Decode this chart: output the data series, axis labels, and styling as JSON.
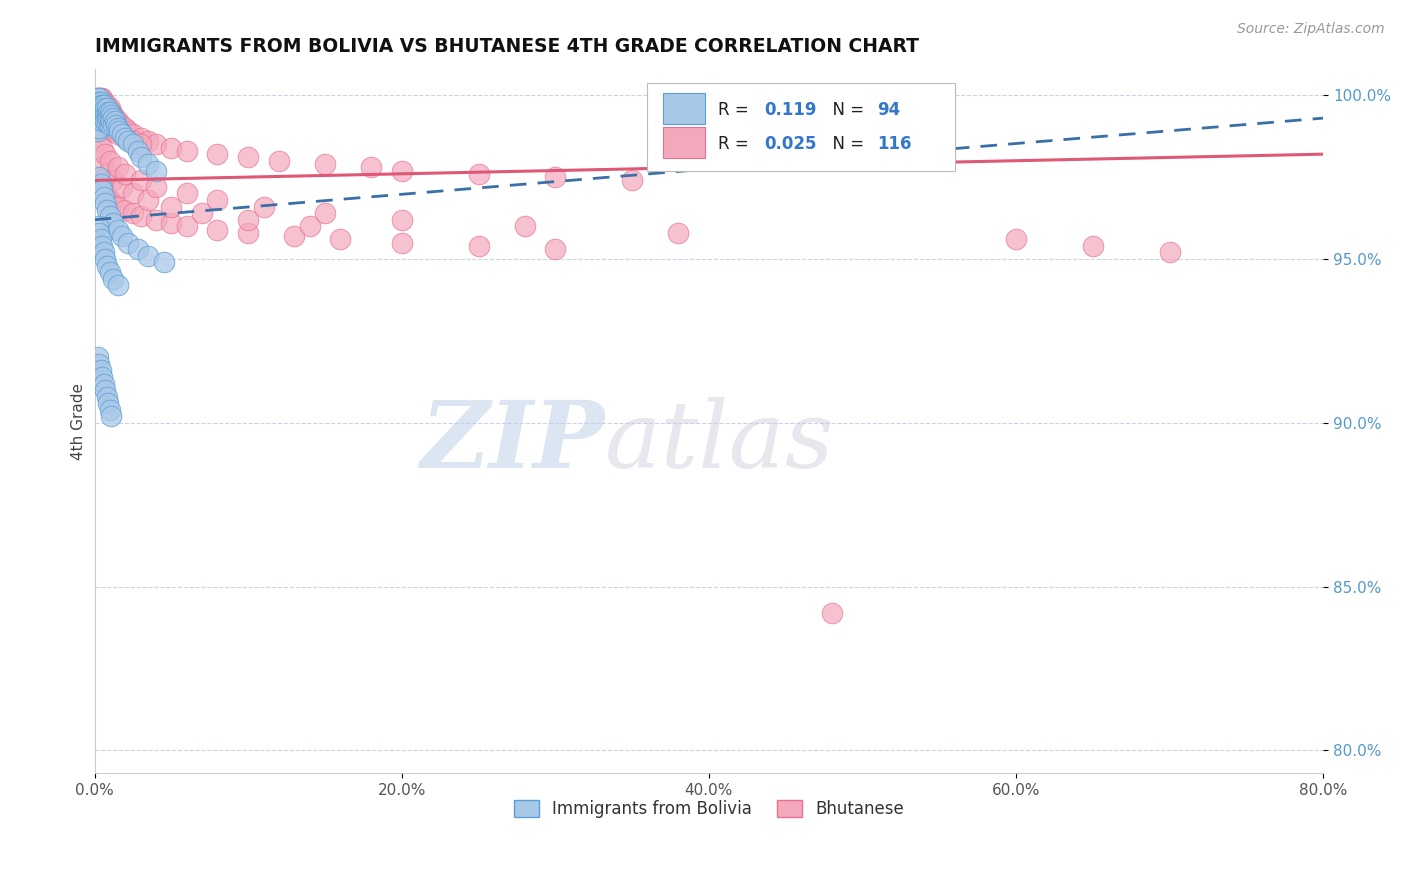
{
  "title": "IMMIGRANTS FROM BOLIVIA VS BHUTANESE 4TH GRADE CORRELATION CHART",
  "source": "Source: ZipAtlas.com",
  "ylabel": "4th Grade",
  "legend_label1": "Immigrants from Bolivia",
  "legend_label2": "Bhutanese",
  "R1": "0.119",
  "N1": "94",
  "R2": "0.025",
  "N2": "116",
  "color1": "#a8c8e8",
  "color1_edge": "#5a9fd4",
  "color1_line": "#3a6fa8",
  "color2": "#f4a8bc",
  "color2_edge": "#e87090",
  "color2_line": "#e05878",
  "xlim": [
    0.0,
    0.8
  ],
  "ylim": [
    0.793,
    1.008
  ],
  "xticks": [
    0.0,
    0.2,
    0.4,
    0.6,
    0.8
  ],
  "xtick_labels": [
    "0.0%",
    "20.0%",
    "40.0%",
    "60.0%",
    "80.0%"
  ],
  "yticks": [
    0.8,
    0.85,
    0.9,
    0.95,
    1.0
  ],
  "ytick_labels": [
    "80.0%",
    "85.0%",
    "90.0%",
    "95.0%",
    "100.0%"
  ],
  "watermark_zip": "ZIP",
  "watermark_atlas": "atlas",
  "background": "#ffffff",
  "grid_color": "#c8d4e8",
  "trendline1_x0": 0.0,
  "trendline1_y0": 0.962,
  "trendline1_x1": 0.8,
  "trendline1_y1": 0.993,
  "trendline2_x0": 0.0,
  "trendline2_y0": 0.974,
  "trendline2_x1": 0.8,
  "trendline2_y1": 0.982,
  "scatter1_x": [
    0.001,
    0.001,
    0.001,
    0.001,
    0.001,
    0.001,
    0.001,
    0.001,
    0.001,
    0.002,
    0.002,
    0.002,
    0.002,
    0.002,
    0.002,
    0.002,
    0.003,
    0.003,
    0.003,
    0.003,
    0.003,
    0.003,
    0.004,
    0.004,
    0.004,
    0.004,
    0.005,
    0.005,
    0.005,
    0.005,
    0.006,
    0.006,
    0.006,
    0.007,
    0.007,
    0.007,
    0.008,
    0.008,
    0.008,
    0.009,
    0.009,
    0.01,
    0.01,
    0.01,
    0.011,
    0.011,
    0.012,
    0.012,
    0.013,
    0.014,
    0.015,
    0.016,
    0.018,
    0.02,
    0.022,
    0.025,
    0.028,
    0.03,
    0.035,
    0.04,
    0.003,
    0.004,
    0.005,
    0.006,
    0.007,
    0.008,
    0.01,
    0.012,
    0.015,
    0.018,
    0.022,
    0.028,
    0.035,
    0.045,
    0.002,
    0.003,
    0.004,
    0.005,
    0.006,
    0.007,
    0.008,
    0.01,
    0.012,
    0.015,
    0.002,
    0.003,
    0.004,
    0.005,
    0.006,
    0.007,
    0.008,
    0.009,
    0.01,
    0.011
  ],
  "scatter1_y": [
    0.998,
    0.997,
    0.996,
    0.995,
    0.994,
    0.993,
    0.992,
    0.991,
    0.99,
    0.999,
    0.997,
    0.996,
    0.995,
    0.993,
    0.991,
    0.989,
    0.999,
    0.998,
    0.996,
    0.994,
    0.992,
    0.99,
    0.998,
    0.997,
    0.995,
    0.993,
    0.997,
    0.996,
    0.994,
    0.992,
    0.997,
    0.995,
    0.993,
    0.996,
    0.994,
    0.992,
    0.996,
    0.994,
    0.992,
    0.995,
    0.993,
    0.995,
    0.993,
    0.991,
    0.994,
    0.992,
    0.993,
    0.991,
    0.992,
    0.991,
    0.99,
    0.989,
    0.988,
    0.987,
    0.986,
    0.985,
    0.983,
    0.981,
    0.979,
    0.977,
    0.975,
    0.973,
    0.971,
    0.969,
    0.967,
    0.965,
    0.963,
    0.961,
    0.959,
    0.957,
    0.955,
    0.953,
    0.951,
    0.949,
    0.96,
    0.958,
    0.956,
    0.954,
    0.952,
    0.95,
    0.948,
    0.946,
    0.944,
    0.942,
    0.92,
    0.918,
    0.916,
    0.914,
    0.912,
    0.91,
    0.908,
    0.906,
    0.904,
    0.902
  ],
  "scatter2_x": [
    0.001,
    0.001,
    0.001,
    0.001,
    0.001,
    0.002,
    0.002,
    0.002,
    0.002,
    0.002,
    0.003,
    0.003,
    0.003,
    0.003,
    0.004,
    0.004,
    0.004,
    0.004,
    0.005,
    0.005,
    0.005,
    0.006,
    0.006,
    0.007,
    0.007,
    0.008,
    0.008,
    0.009,
    0.01,
    0.01,
    0.011,
    0.012,
    0.013,
    0.015,
    0.017,
    0.02,
    0.022,
    0.025,
    0.03,
    0.035,
    0.04,
    0.05,
    0.06,
    0.08,
    0.1,
    0.12,
    0.15,
    0.18,
    0.2,
    0.25,
    0.3,
    0.35,
    0.003,
    0.004,
    0.005,
    0.006,
    0.007,
    0.008,
    0.01,
    0.012,
    0.015,
    0.02,
    0.025,
    0.03,
    0.04,
    0.05,
    0.06,
    0.08,
    0.1,
    0.13,
    0.16,
    0.2,
    0.25,
    0.3,
    0.005,
    0.008,
    0.012,
    0.018,
    0.025,
    0.035,
    0.05,
    0.07,
    0.1,
    0.14,
    0.003,
    0.005,
    0.007,
    0.01,
    0.015,
    0.02,
    0.03,
    0.04,
    0.06,
    0.08,
    0.11,
    0.15,
    0.2,
    0.28,
    0.38,
    0.6,
    0.65,
    0.7,
    0.002,
    0.003,
    0.004,
    0.005,
    0.006,
    0.007,
    0.008,
    0.01,
    0.012,
    0.015,
    0.02,
    0.025,
    0.03,
    0.48
  ],
  "scatter2_y": [
    0.999,
    0.998,
    0.997,
    0.996,
    0.995,
    0.999,
    0.998,
    0.997,
    0.996,
    0.994,
    0.999,
    0.998,
    0.996,
    0.994,
    0.999,
    0.997,
    0.995,
    0.993,
    0.999,
    0.997,
    0.995,
    0.998,
    0.996,
    0.997,
    0.995,
    0.997,
    0.995,
    0.996,
    0.996,
    0.994,
    0.995,
    0.994,
    0.993,
    0.992,
    0.991,
    0.99,
    0.989,
    0.988,
    0.987,
    0.986,
    0.985,
    0.984,
    0.983,
    0.982,
    0.981,
    0.98,
    0.979,
    0.978,
    0.977,
    0.976,
    0.975,
    0.974,
    0.974,
    0.973,
    0.972,
    0.971,
    0.97,
    0.969,
    0.968,
    0.967,
    0.966,
    0.965,
    0.964,
    0.963,
    0.962,
    0.961,
    0.96,
    0.959,
    0.958,
    0.957,
    0.956,
    0.955,
    0.954,
    0.953,
    0.978,
    0.976,
    0.974,
    0.972,
    0.97,
    0.968,
    0.966,
    0.964,
    0.962,
    0.96,
    0.986,
    0.984,
    0.982,
    0.98,
    0.978,
    0.976,
    0.974,
    0.972,
    0.97,
    0.968,
    0.966,
    0.964,
    0.962,
    0.96,
    0.958,
    0.956,
    0.954,
    0.952,
    0.997,
    0.996,
    0.995,
    0.994,
    0.993,
    0.992,
    0.991,
    0.99,
    0.989,
    0.988,
    0.987,
    0.986,
    0.985,
    0.842
  ]
}
